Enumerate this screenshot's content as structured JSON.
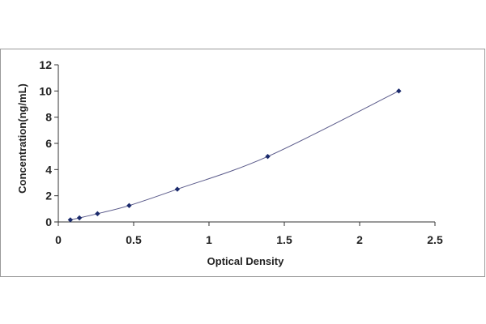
{
  "chart_data": {
    "type": "scatter",
    "title": "",
    "xlabel": "Optical Density",
    "ylabel": "Concentration(ng/mL)",
    "xlim": [
      0,
      2.5
    ],
    "ylim": [
      0,
      12
    ],
    "x_ticks": [
      "0",
      "0.5",
      "1",
      "1.5",
      "2",
      "2.5"
    ],
    "y_ticks": [
      "0",
      "2",
      "4",
      "6",
      "8",
      "10",
      "12"
    ],
    "grid": false,
    "legend": "none",
    "series": [
      {
        "x": [
          0.08,
          0.14,
          0.26,
          0.47,
          0.79,
          1.39,
          2.26
        ],
        "y": [
          0.16,
          0.31,
          0.63,
          1.25,
          2.5,
          5,
          10
        ],
        "marker_color": "#1a2a6c",
        "line_color": "#5a5a8a",
        "fit": "smooth-curve"
      }
    ]
  }
}
